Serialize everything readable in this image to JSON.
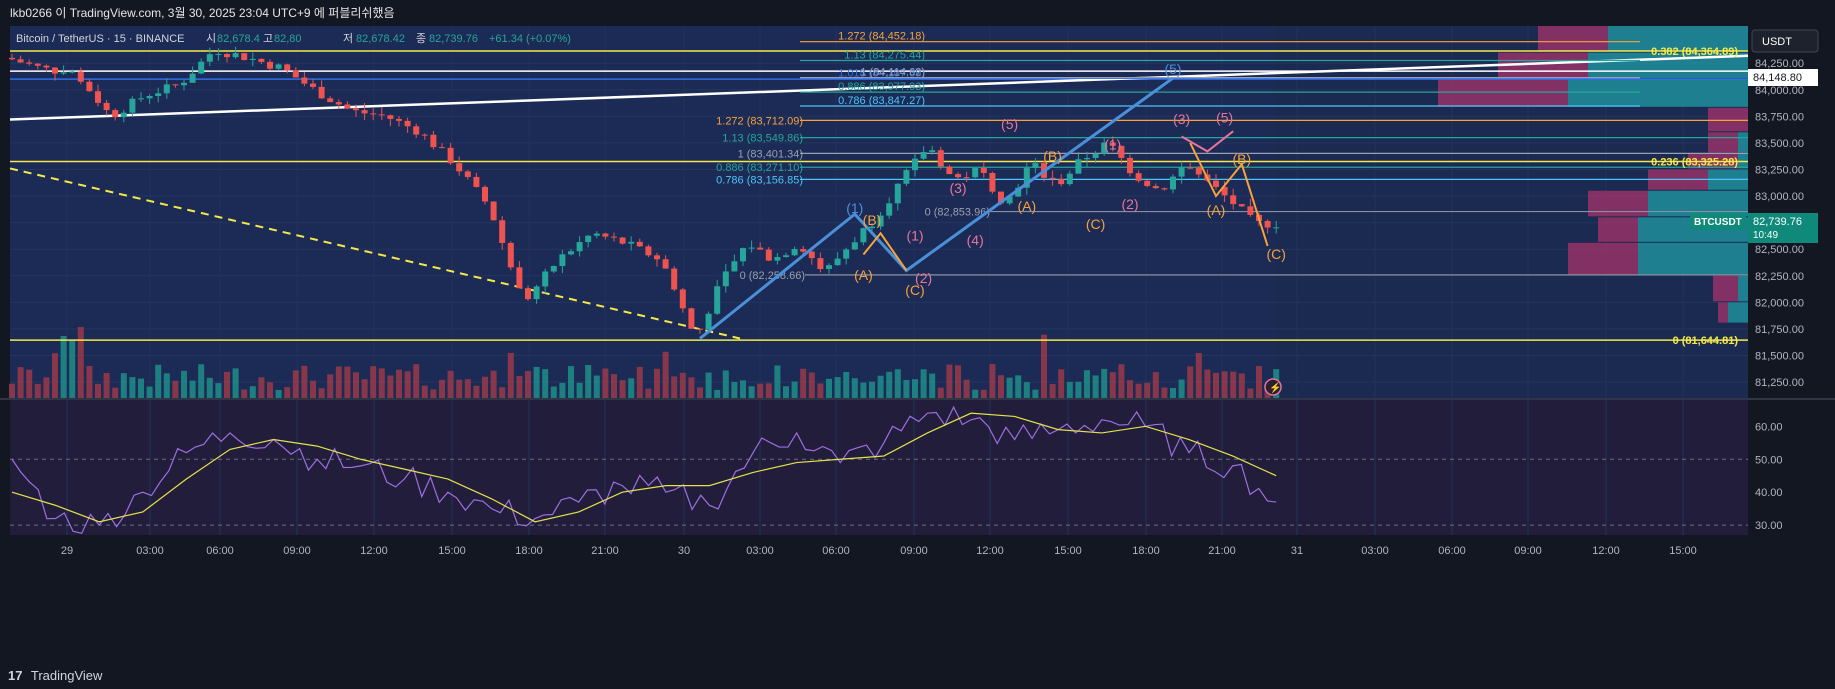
{
  "header": {
    "text": "lkb0266 이 TradingView.com, 3월 30, 2025 23:04 UTC+9 에 퍼블리쉬했음"
  },
  "footer": {
    "logo": "17",
    "brand": "TradingView"
  },
  "symbol": {
    "title": "Bitcoin / TetherUS · 15 · BINANCE",
    "ohlc_labels": [
      "시",
      "고",
      "저",
      "종"
    ],
    "open": "82,678.4",
    "high": "82,80",
    "low": "82,678.42",
    "close": "82,739.76",
    "change": "+61.34 (+0.07%)",
    "currency": "USDT",
    "ticker": "BTCUSDT",
    "last_price": "82,739.76",
    "countdown": "10:49",
    "crosshair_price": "84,148.80"
  },
  "colors": {
    "background": "#1b2b55",
    "up": "#26a69a",
    "down": "#ef5350",
    "fib_yellow": "#f5e94a",
    "wave_blue": "#4a90d9",
    "wave_orange": "#f7a23b",
    "wave_pink": "#e8749a",
    "rsi_line": "#9c6fe0",
    "rsi_ma": "#e3e34c"
  },
  "chart_data": {
    "type": "candlestick",
    "symbol": "BTCUSDT",
    "interval": "15",
    "price_axis": {
      "ticks": [
        "84,250.00",
        "84,000.00",
        "83,750.00",
        "83,500.00",
        "83,250.00",
        "83,000.00",
        "82,750.00",
        "82,500.00",
        "82,250.00",
        "82,000.00",
        "81,750.00",
        "81,500.00",
        "81,250.00"
      ],
      "range": [
        81100,
        84600
      ]
    },
    "time_axis": {
      "ticks": [
        "29",
        "03:00",
        "06:00",
        "09:00",
        "12:00",
        "15:00",
        "18:00",
        "21:00",
        "30",
        "03:00",
        "06:00",
        "09:00",
        "12:00",
        "15:00",
        "18:00",
        "21:00",
        "31",
        "03:00",
        "06:00",
        "09:00",
        "12:00",
        "15:00"
      ]
    },
    "rsi": {
      "ticks": [
        "60.00",
        "50.00",
        "40.00",
        "30.00"
      ],
      "range": [
        27,
        68
      ],
      "bands": [
        50,
        30
      ]
    },
    "price_path": [
      [
        0,
        84300
      ],
      [
        4,
        84200
      ],
      [
        8,
        84150
      ],
      [
        12,
        83750
      ],
      [
        16,
        83950
      ],
      [
        20,
        84050
      ],
      [
        24,
        84380
      ],
      [
        28,
        84300
      ],
      [
        32,
        84200
      ],
      [
        36,
        83980
      ],
      [
        40,
        83800
      ],
      [
        44,
        83750
      ],
      [
        48,
        83600
      ],
      [
        52,
        83300
      ],
      [
        56,
        82900
      ],
      [
        60,
        82000
      ],
      [
        64,
        82400
      ],
      [
        68,
        82650
      ],
      [
        72,
        82550
      ],
      [
        76,
        82400
      ],
      [
        80,
        81660
      ],
      [
        83,
        82200
      ],
      [
        86,
        82560
      ],
      [
        89,
        82400
      ],
      [
        92,
        82560
      ],
      [
        95,
        82280
      ],
      [
        98,
        82550
      ],
      [
        101,
        82800
      ],
      [
        104,
        83150
      ],
      [
        107,
        83480
      ],
      [
        110,
        83150
      ],
      [
        113,
        83250
      ],
      [
        116,
        82920
      ],
      [
        119,
        83310
      ],
      [
        122,
        83100
      ],
      [
        125,
        83350
      ],
      [
        128,
        83500
      ],
      [
        131,
        83200
      ],
      [
        134,
        83050
      ],
      [
        137,
        83300
      ],
      [
        140,
        83100
      ],
      [
        143,
        82900
      ],
      [
        145,
        82740
      ]
    ],
    "rsi_path": [
      [
        0,
        50
      ],
      [
        5,
        32
      ],
      [
        10,
        30
      ],
      [
        15,
        40
      ],
      [
        20,
        52
      ],
      [
        25,
        58
      ],
      [
        30,
        56
      ],
      [
        35,
        50
      ],
      [
        40,
        48
      ],
      [
        45,
        44
      ],
      [
        50,
        40
      ],
      [
        55,
        35
      ],
      [
        60,
        32
      ],
      [
        65,
        37
      ],
      [
        70,
        42
      ],
      [
        75,
        40
      ],
      [
        80,
        36
      ],
      [
        85,
        52
      ],
      [
        90,
        58
      ],
      [
        95,
        49
      ],
      [
        100,
        55
      ],
      [
        105,
        64
      ],
      [
        110,
        62
      ],
      [
        115,
        56
      ],
      [
        120,
        59
      ],
      [
        125,
        62
      ],
      [
        130,
        60
      ],
      [
        135,
        52
      ],
      [
        140,
        48
      ],
      [
        145,
        37
      ]
    ],
    "rsi_ma_path": [
      [
        0,
        40
      ],
      [
        5,
        36
      ],
      [
        10,
        31
      ],
      [
        15,
        34
      ],
      [
        20,
        44
      ],
      [
        25,
        53
      ],
      [
        30,
        56
      ],
      [
        35,
        54
      ],
      [
        40,
        50
      ],
      [
        45,
        47
      ],
      [
        50,
        44
      ],
      [
        55,
        38
      ],
      [
        60,
        31
      ],
      [
        65,
        34
      ],
      [
        70,
        40
      ],
      [
        75,
        42
      ],
      [
        80,
        42
      ],
      [
        85,
        46
      ],
      [
        90,
        49
      ],
      [
        95,
        50
      ],
      [
        100,
        51
      ],
      [
        105,
        58
      ],
      [
        110,
        64
      ],
      [
        115,
        63
      ],
      [
        120,
        59
      ],
      [
        125,
        58
      ],
      [
        130,
        60
      ],
      [
        135,
        56
      ],
      [
        140,
        51
      ],
      [
        145,
        45
      ]
    ],
    "right_labels": [
      {
        "text": "0.382 (84,364.89)",
        "price": 84364.89,
        "color": "#f5e94a"
      },
      {
        "text": "0.236 (83,325.28)",
        "price": 83325.28,
        "color": "#f5e94a"
      },
      {
        "text": "0 (81,644.81)",
        "price": 81644.81,
        "color": "#f5e94a"
      }
    ],
    "fib_set_a": [
      {
        "text": "1.272 (84,452.18)",
        "price": 84452.18,
        "color": "#f7a23b"
      },
      {
        "text": "1.13 (84,275.44)",
        "price": 84275.44,
        "color": "#26a69a"
      },
      {
        "text": "1.018 (84,107.39)",
        "price": 84107.39,
        "color": "#2f6fe8"
      },
      {
        "text": "1 (84,114.62)",
        "price": 84114.62,
        "color": "#9aa0ad"
      },
      {
        "text": "0.886 (83,977.93)",
        "price": 83977.93,
        "color": "#26a69a"
      },
      {
        "text": "0.786 (83,847.27)",
        "price": 83847.27,
        "color": "#4fc3f7"
      }
    ],
    "fib_set_b": [
      {
        "text": "1.272 (83,712.09)",
        "price": 83712.09,
        "color": "#f7a23b"
      },
      {
        "text": "1.13 (83,549.86)",
        "price": 83549.86,
        "color": "#26a69a"
      },
      {
        "text": "1 (83,401.34)",
        "price": 83401.34,
        "color": "#9aa0ad"
      },
      {
        "text": "0.886 (83,271.10)",
        "price": 83271.1,
        "color": "#26a69a"
      },
      {
        "text": "0.786 (83,156.85)",
        "price": 83156.85,
        "color": "#4fc3f7"
      }
    ],
    "fib_low_labels": [
      {
        "text": "0 (82,853.96)",
        "price": 82853.96
      },
      {
        "text": "0 (82,258.66)",
        "price": 82258.66
      }
    ],
    "wave_labels": [
      {
        "text": "(1)",
        "color": "#4a90d9",
        "bar": 98,
        "price": 82840
      },
      {
        "text": "(5)",
        "color": "#4a90d9",
        "bar": 135,
        "price": 84150
      },
      {
        "text": "(B)",
        "color": "#f7a23b",
        "bar": 100,
        "price": 82730
      },
      {
        "text": "(A)",
        "color": "#f7a23b",
        "bar": 99,
        "price": 82210
      },
      {
        "text": "(C)",
        "color": "#f7a23b",
        "bar": 105,
        "price": 82070
      },
      {
        "text": "(1)",
        "color": "#e8749a",
        "bar": 105,
        "price": 82580
      },
      {
        "text": "(2)",
        "color": "#e8749a",
        "bar": 106,
        "price": 82180
      },
      {
        "text": "(3)",
        "color": "#e8749a",
        "bar": 110,
        "price": 83030
      },
      {
        "text": "(4)",
        "color": "#e8749a",
        "bar": 112,
        "price": 82540
      },
      {
        "text": "(5)",
        "color": "#e8749a",
        "bar": 116,
        "price": 83630
      },
      {
        "text": "(A)",
        "color": "#f7a23b",
        "bar": 118,
        "price": 82860
      },
      {
        "text": "(B)",
        "color": "#f7a23b",
        "bar": 121,
        "price": 83330
      },
      {
        "text": "(C)",
        "color": "#f7a23b",
        "bar": 126,
        "price": 82690
      },
      {
        "text": "(1)",
        "color": "#e8749a",
        "bar": 128,
        "price": 83440
      },
      {
        "text": "(2)",
        "color": "#e8749a",
        "bar": 130,
        "price": 82880
      },
      {
        "text": "(3)",
        "color": "#e8749a",
        "bar": 136,
        "price": 83680
      },
      {
        "text": "(5)",
        "color": "#e8749a",
        "bar": 141,
        "price": 83690
      },
      {
        "text": "(A)",
        "color": "#f7a23b",
        "bar": 140,
        "price": 82820
      },
      {
        "text": "(B)",
        "color": "#f7a23b",
        "bar": 143,
        "price": 83300
      },
      {
        "text": "(C)",
        "color": "#f7a23b",
        "bar": 147,
        "price": 82410
      }
    ]
  }
}
